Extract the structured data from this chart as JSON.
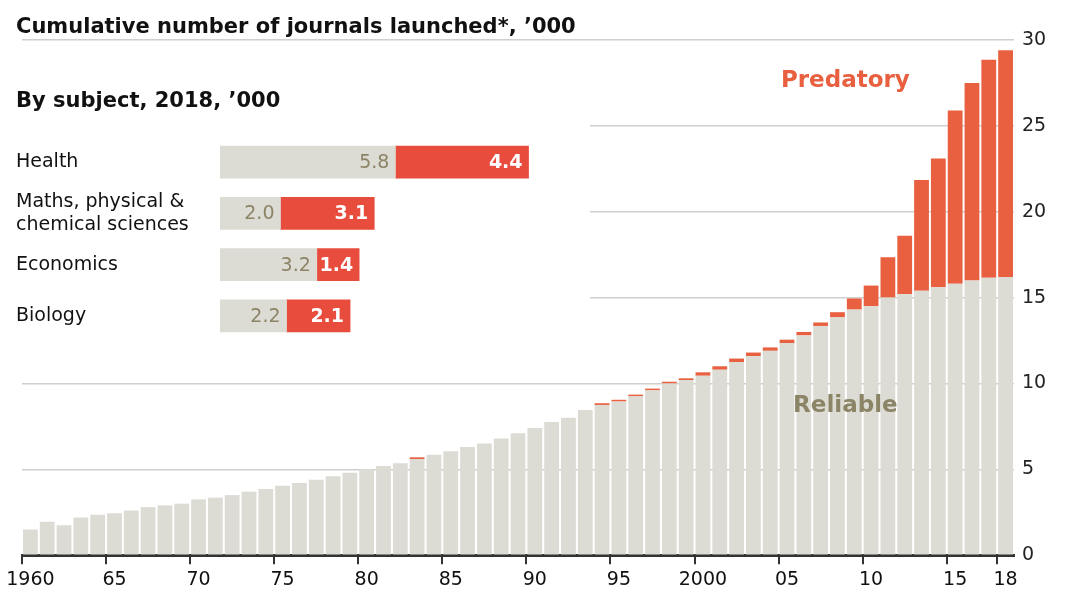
{
  "chart_data": [
    {
      "type": "bar",
      "title": "Cumulative number of journals launched*, ’000",
      "categories": [
        "1960",
        null,
        null,
        null,
        null,
        "65",
        null,
        null,
        null,
        null,
        "70",
        null,
        null,
        null,
        null,
        "75",
        null,
        null,
        null,
        null,
        "80",
        null,
        null,
        null,
        null,
        "85",
        null,
        null,
        null,
        null,
        "90",
        null,
        null,
        null,
        null,
        "95",
        null,
        null,
        null,
        null,
        "2000",
        null,
        null,
        null,
        null,
        "05",
        null,
        null,
        null,
        null,
        "10",
        null,
        null,
        null,
        null,
        "15",
        null,
        null,
        "18"
      ],
      "series": [
        {
          "name": "Reliable",
          "color": "#dcdbd4",
          "values": [
            1.5,
            1.95,
            1.75,
            2.2,
            2.35,
            2.45,
            2.6,
            2.8,
            2.9,
            3.0,
            3.25,
            3.35,
            3.5,
            3.7,
            3.85,
            4.05,
            4.2,
            4.4,
            4.6,
            4.8,
            5.0,
            5.2,
            5.35,
            5.6,
            5.85,
            6.05,
            6.3,
            6.5,
            6.8,
            7.1,
            7.4,
            7.75,
            8.0,
            8.45,
            8.75,
            8.95,
            9.25,
            9.6,
            10.0,
            10.2,
            10.45,
            10.8,
            11.25,
            11.6,
            11.9,
            12.35,
            12.8,
            13.35,
            13.85,
            14.3,
            14.5,
            15.0,
            15.2,
            15.4,
            15.6,
            15.8,
            16.0,
            16.15,
            16.2
          ]
        },
        {
          "name": "Predatory",
          "color": "#e8603f",
          "values": [
            0,
            0,
            0,
            0,
            0,
            0,
            0,
            0,
            0,
            0,
            0,
            0,
            0,
            0,
            0,
            0,
            0,
            0,
            0,
            0,
            0,
            0,
            0,
            0.1,
            0,
            0,
            0,
            0,
            0,
            0,
            0,
            0,
            0,
            0,
            0.1,
            0.1,
            0.1,
            0.1,
            0.1,
            0.1,
            0.2,
            0.2,
            0.2,
            0.2,
            0.2,
            0.2,
            0.2,
            0.2,
            0.3,
            0.65,
            1.2,
            2.35,
            3.4,
            6.45,
            7.5,
            10.1,
            11.5,
            12.7,
            13.2
          ]
        }
      ],
      "stacked": true,
      "ylim": [
        0,
        30
      ],
      "yticks": [
        0,
        5,
        10,
        15,
        20,
        25,
        30
      ],
      "grid": "y"
    },
    {
      "type": "bar",
      "title": "By subject, 2018, ’000",
      "orientation": "horizontal",
      "stacked": true,
      "categories": [
        "Health",
        "Maths, physical & chemical sciences",
        "Economics",
        "Biology"
      ],
      "series": [
        {
          "color": "#dcdbd4",
          "values": [
            5.8,
            2.0,
            3.2,
            2.2
          ],
          "value_labels": [
            "5.8",
            "2.0",
            "3.2",
            "2.2"
          ]
        },
        {
          "color": "#e84c3d",
          "values": [
            4.4,
            3.1,
            1.4,
            2.1
          ],
          "value_labels": [
            "4.4",
            "3.1",
            "1.4",
            "2.1"
          ]
        }
      ]
    }
  ]
}
